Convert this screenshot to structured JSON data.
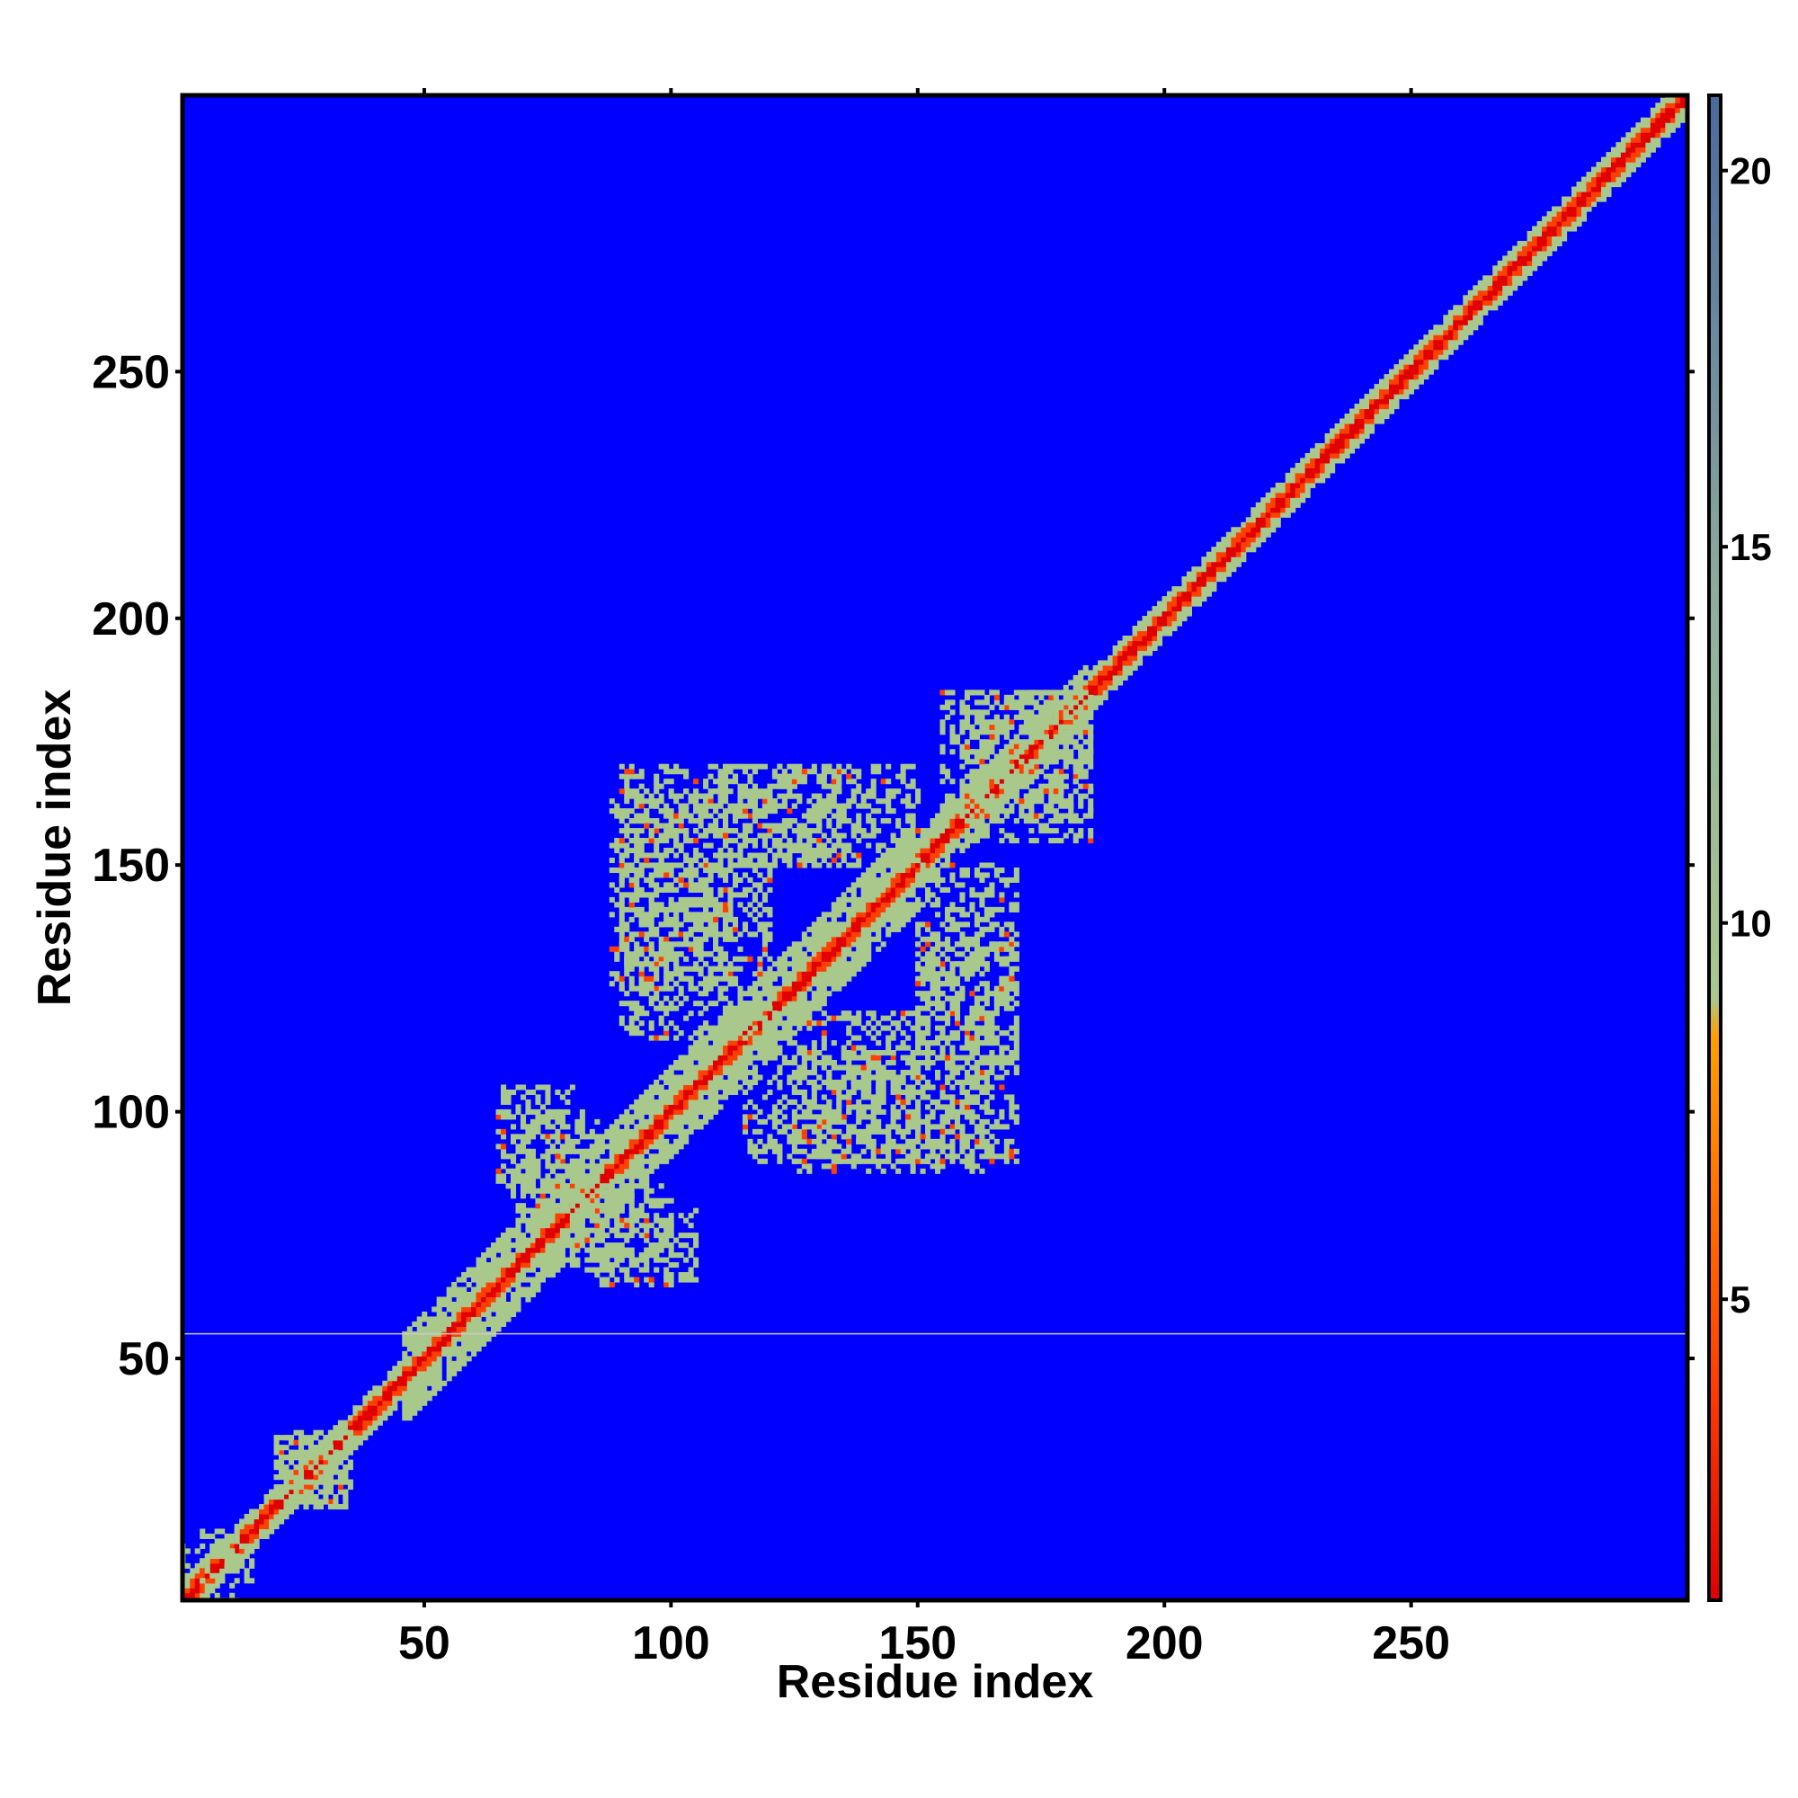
{
  "chart_data": {
    "type": "heatmap",
    "title": "",
    "xlabel": "Residue index",
    "ylabel": "Residue index",
    "xlim": [
      1,
      306
    ],
    "ylim": [
      1,
      306
    ],
    "xticks": [
      50,
      100,
      150,
      200,
      250
    ],
    "yticks": [
      50,
      100,
      150,
      200,
      250
    ],
    "colorbar": {
      "range": [
        1,
        21
      ],
      "ticks": [
        5,
        10,
        15,
        20
      ],
      "stops": [
        {
          "value": 1,
          "color": "#e00000"
        },
        {
          "value": 4,
          "color": "#ff4000"
        },
        {
          "value": 8.5,
          "color": "#ffa000"
        },
        {
          "value": 9,
          "color": "#a8c88c"
        },
        {
          "value": 14,
          "color": "#8fb09c"
        },
        {
          "value": 21,
          "color": "#4a6aa0"
        }
      ],
      "background_color": "#0000ff"
    },
    "colormap_description_hidden": null,
    "matrix": {
      "description": "",
      "size": 306,
      "symmetric": true,
      "diagonal_value": 1,
      "background_value": 21,
      "cutoff_value": 21
    },
    "contact_regions": [
      {
        "x": [
          5,
          12
        ],
        "y": [
          1,
          15
        ],
        "value": 12
      },
      {
        "x": [
          20,
          35
        ],
        "y": [
          20,
          35
        ],
        "value": 11
      },
      {
        "x": [
          68,
          85
        ],
        "y": [
          80,
          100
        ],
        "value": 12
      },
      {
        "x": [
          85,
          105
        ],
        "y": [
          65,
          80
        ],
        "value": 12
      },
      {
        "x": [
          88,
          112
        ],
        "y": [
          125,
          165
        ],
        "value": 12
      },
      {
        "x": [
          115,
          150
        ],
        "y": [
          90,
          120
        ],
        "value": 12
      },
      {
        "x": [
          150,
          170
        ],
        "y": [
          90,
          135
        ],
        "value": 11
      },
      {
        "x": [
          110,
          150
        ],
        "y": [
          150,
          170
        ],
        "value": 12
      },
      {
        "x": [
          160,
          185
        ],
        "y": [
          155,
          185
        ],
        "value": 11
      }
    ],
    "guide_line": {
      "y": 55,
      "color": "#cccccc"
    }
  }
}
